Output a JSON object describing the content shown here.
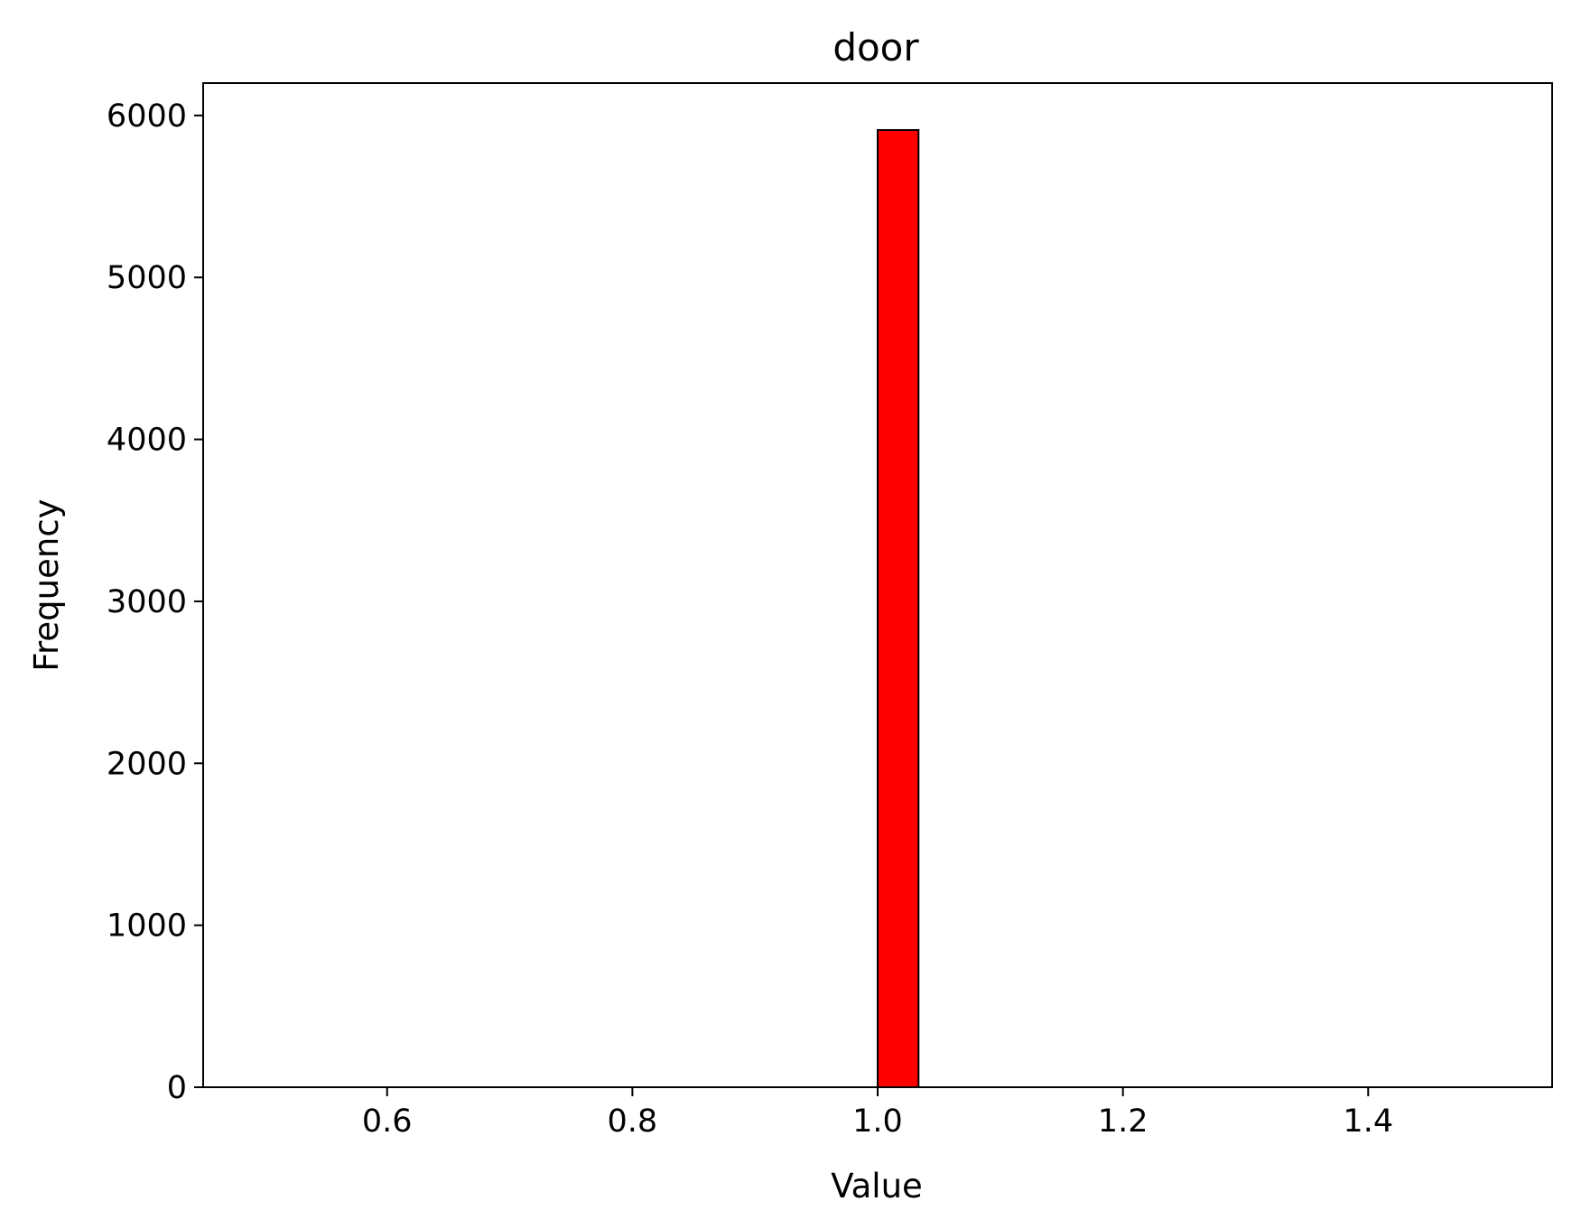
{
  "chart_data": {
    "type": "bar",
    "title": "door",
    "xlabel": "Value",
    "ylabel": "Frequency",
    "xlim": [
      0.45,
      1.55
    ],
    "ylim": [
      0,
      6200
    ],
    "x_ticks": [
      0.6,
      0.8,
      1.0,
      1.2,
      1.4
    ],
    "x_tick_labels": [
      "0.6",
      "0.8",
      "1.0",
      "1.2",
      "1.4"
    ],
    "y_ticks": [
      0,
      1000,
      2000,
      3000,
      4000,
      5000,
      6000
    ],
    "y_tick_labels": [
      "0",
      "1000",
      "2000",
      "3000",
      "4000",
      "5000",
      "6000"
    ],
    "bins": {
      "range": [
        0.5,
        1.5
      ],
      "count": 30,
      "values": [
        0,
        0,
        0,
        0,
        0,
        0,
        0,
        0,
        0,
        0,
        0,
        0,
        0,
        0,
        0,
        5910,
        0,
        0,
        0,
        0,
        0,
        0,
        0,
        0,
        0,
        0,
        0,
        0,
        0,
        0
      ]
    },
    "bar_color": "#ff0000",
    "edge_color": "#000000",
    "grid": false,
    "legend": "none"
  }
}
